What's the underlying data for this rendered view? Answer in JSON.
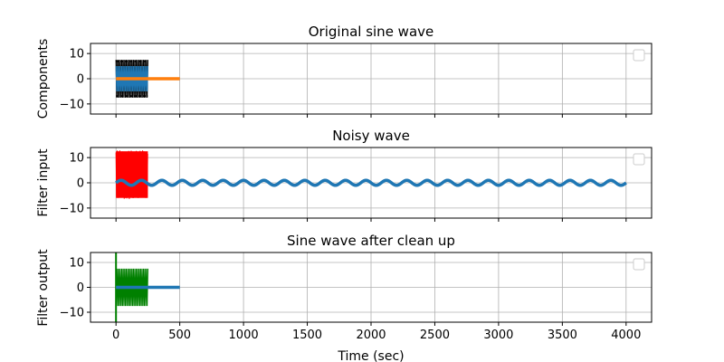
{
  "chart_data": [
    {
      "type": "line",
      "title": "Original sine wave",
      "xlabel": "",
      "ylabel": "Components",
      "xlim": [
        -200,
        4200
      ],
      "ylim": [
        -14,
        14
      ],
      "x_ticks": [
        0,
        500,
        1000,
        1500,
        2000,
        2500,
        3000,
        3500,
        4000
      ],
      "x_tick_labels_visible": false,
      "y_ticks": [
        -10,
        0,
        10
      ],
      "grid": true,
      "legend": "top-right (empty)",
      "series": [
        {
          "color": "#000000",
          "kind": "oscillation",
          "x_range": [
            0,
            250
          ],
          "amplitude": 7.5,
          "center": 0
        },
        {
          "color": "#1f77b4",
          "kind": "oscillation",
          "x_range": [
            0,
            250
          ],
          "amplitude": 5,
          "center": 0
        },
        {
          "color": "#ff7f0e",
          "kind": "line",
          "x": [
            0,
            500
          ],
          "y": [
            0,
            0
          ]
        }
      ]
    },
    {
      "type": "line",
      "title": "Noisy wave",
      "xlabel": "",
      "ylabel": "Filter input",
      "xlim": [
        -200,
        4200
      ],
      "ylim": [
        -14,
        14
      ],
      "x_ticks": [
        0,
        500,
        1000,
        1500,
        2000,
        2500,
        3000,
        3500,
        4000
      ],
      "x_tick_labels_visible": false,
      "y_ticks": [
        -10,
        0,
        10
      ],
      "grid": true,
      "legend": "top-right (empty)",
      "series": [
        {
          "color": "#ff0000",
          "kind": "noise_band",
          "x_range": [
            0,
            250
          ],
          "y_range": [
            -6.5,
            13
          ]
        },
        {
          "color": "#1f77b4",
          "kind": "sine",
          "x_range": [
            0,
            4000
          ],
          "amplitude": 1,
          "period": 160,
          "center": 0
        }
      ]
    },
    {
      "type": "line",
      "title": "Sine wave after clean up",
      "xlabel": "Time (sec)",
      "ylabel": "Filter output",
      "xlim": [
        -200,
        4200
      ],
      "ylim": [
        -14,
        14
      ],
      "x_ticks": [
        0,
        500,
        1000,
        1500,
        2000,
        2500,
        3000,
        3500,
        4000
      ],
      "x_tick_labels_visible": true,
      "y_ticks": [
        -10,
        0,
        10
      ],
      "grid": true,
      "legend": "top-right (empty)",
      "series": [
        {
          "color": "#008000",
          "kind": "spike",
          "x": 0,
          "y_range": [
            -14,
            14
          ]
        },
        {
          "color": "#008000",
          "kind": "oscillation",
          "x_range": [
            0,
            250
          ],
          "amplitude": 7.5,
          "center": 0
        },
        {
          "color": "#1f77b4",
          "kind": "line",
          "x": [
            0,
            500
          ],
          "y": [
            0,
            0
          ]
        }
      ]
    }
  ]
}
